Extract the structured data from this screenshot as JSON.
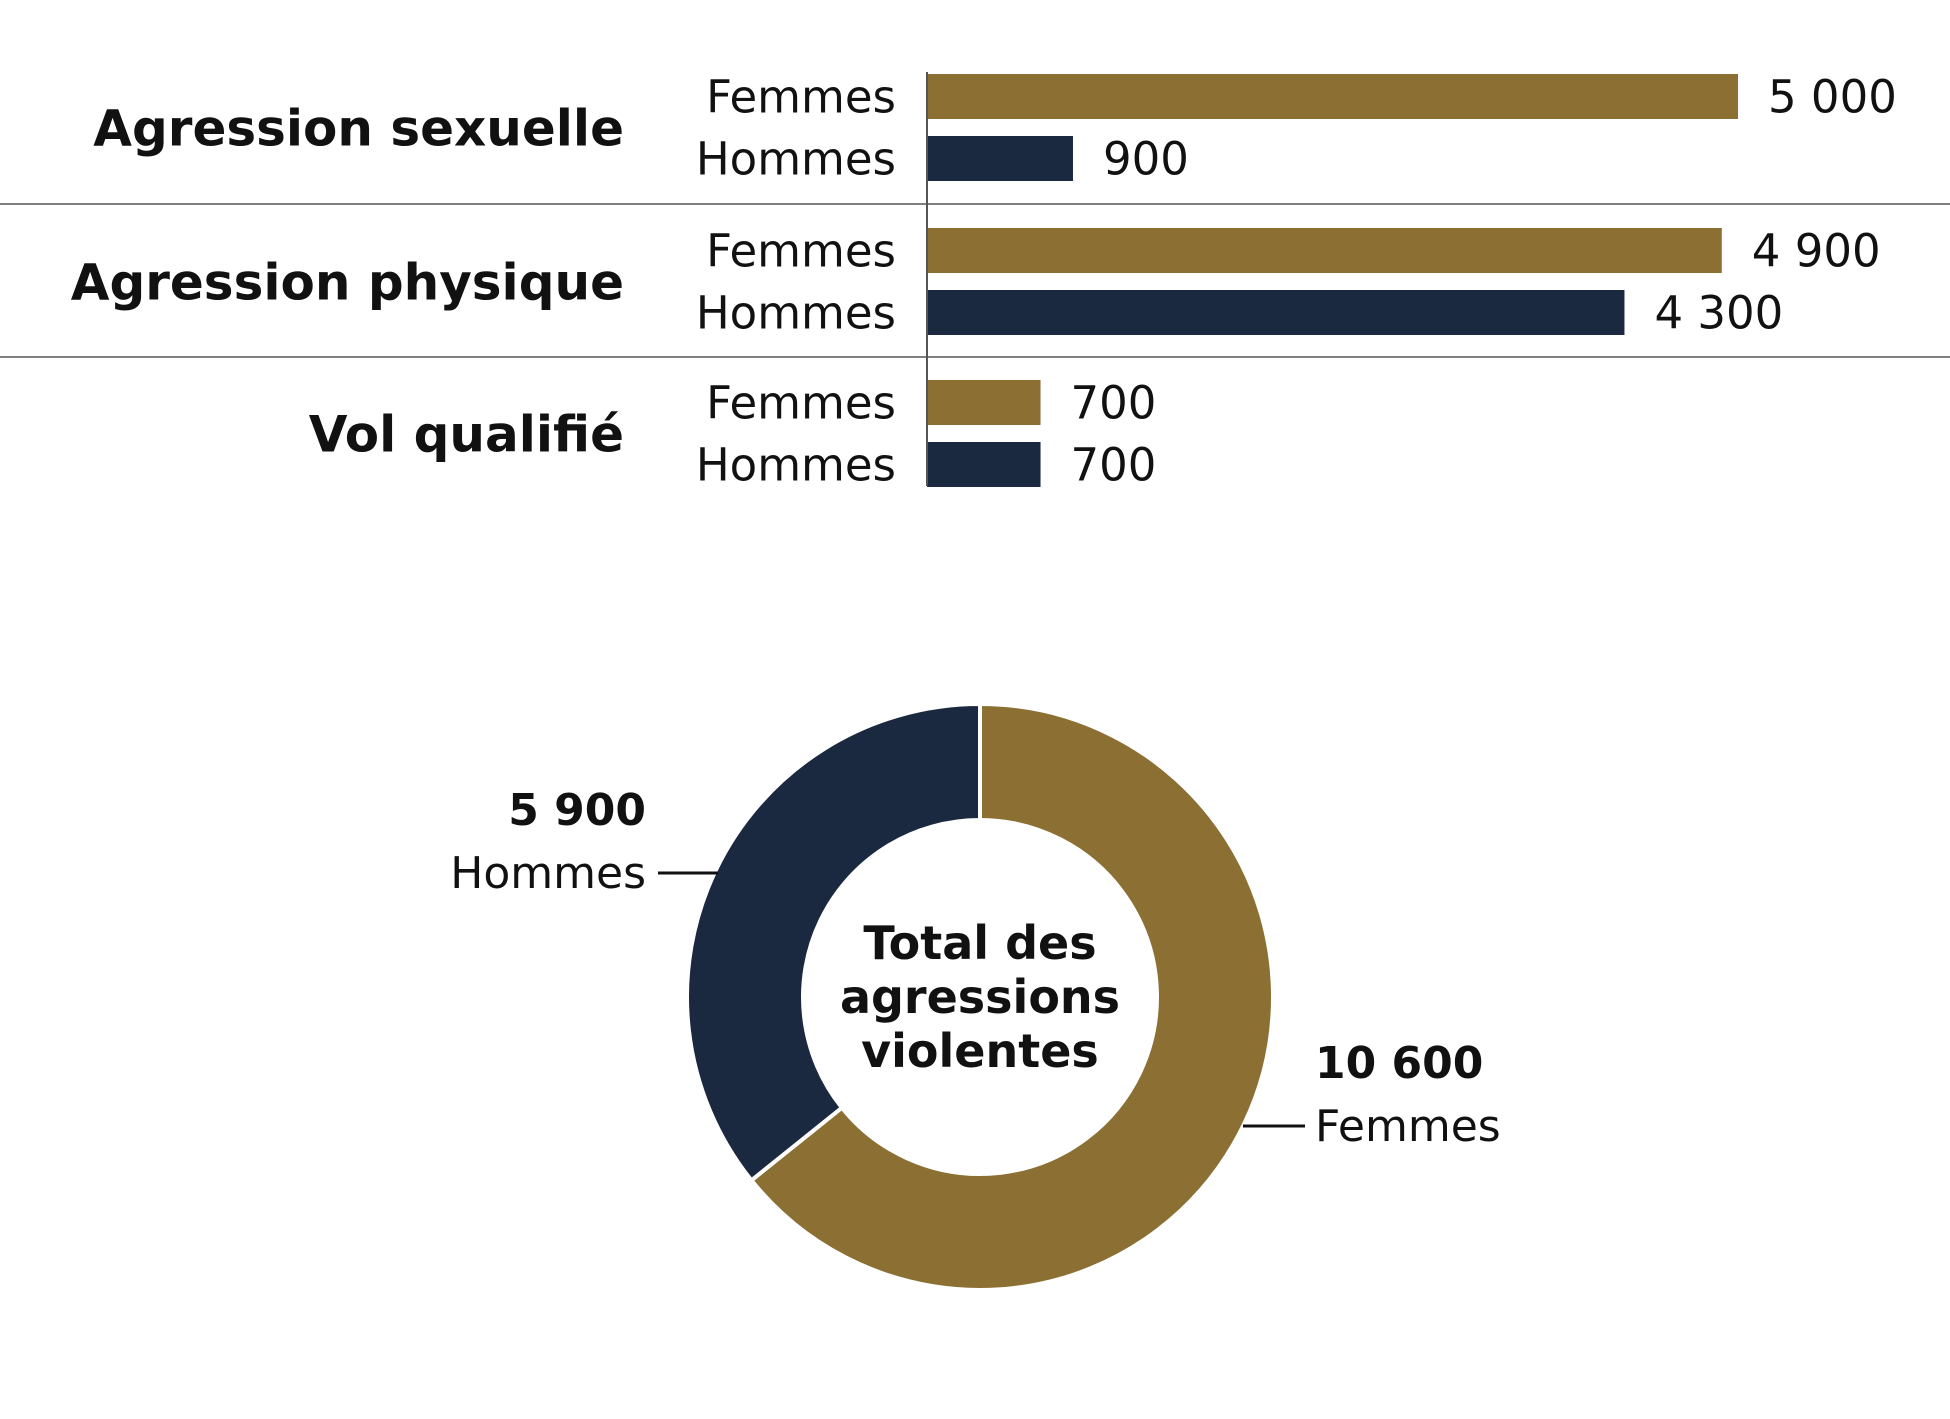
{
  "colors": {
    "femmes": "#8B6F33",
    "hommes": "#1A2840",
    "separator": "#555555",
    "leader": "#111111"
  },
  "chart_data": [
    {
      "type": "bar",
      "orientation": "horizontal",
      "categories": [
        "Agression sexuelle",
        "Agression physique",
        "Vol qualifié"
      ],
      "series": [
        {
          "name": "Femmes",
          "values": [
            5000,
            4900,
            700
          ],
          "labels": [
            "5 000",
            "4 900",
            "700"
          ]
        },
        {
          "name": "Hommes",
          "values": [
            900,
            4300,
            700
          ],
          "labels": [
            "900",
            "4 300",
            "700"
          ]
        }
      ],
      "xlim": [
        0,
        5000
      ],
      "grid": false
    },
    {
      "type": "pie",
      "style": "donut",
      "center_label": [
        "Total des",
        "agressions",
        "violentes"
      ],
      "slices": [
        {
          "name": "Femmes",
          "value": 10600,
          "label": "10 600"
        },
        {
          "name": "Hommes",
          "value": 5900,
          "label": "5 900"
        }
      ]
    }
  ]
}
